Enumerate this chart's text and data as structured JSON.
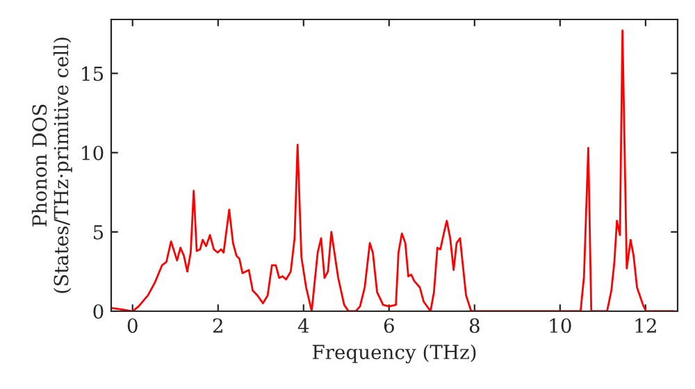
{
  "chart_data": {
    "type": "line",
    "xlabel": "Frequency (THz)",
    "ylabel": "Phonon DOS\n(States/THz·primitive cell)",
    "xlim": [
      -0.5,
      12.75
    ],
    "ylim": [
      0,
      18.4
    ],
    "xticks": [
      0,
      2,
      4,
      6,
      8,
      10,
      12
    ],
    "yticks": [
      0,
      5,
      10,
      15
    ],
    "grid": false,
    "marker": "none",
    "line_style": "solid",
    "series": [
      {
        "color": "#ff0000",
        "x": [
          -0.5,
          -0.24,
          0,
          0.14,
          0.36,
          0.52,
          0.69,
          0.79,
          0.9,
          1.04,
          1.12,
          1.2,
          1.28,
          1.36,
          1.43,
          1.5,
          1.58,
          1.64,
          1.72,
          1.81,
          1.9,
          1.99,
          2.07,
          2.13,
          2.26,
          2.35,
          2.43,
          2.5,
          2.57,
          2.72,
          2.81,
          2.92,
          3.05,
          3.16,
          3.26,
          3.35,
          3.43,
          3.51,
          3.59,
          3.7,
          3.79,
          3.86,
          3.95,
          4.06,
          4.19,
          4.33,
          4.41,
          4.49,
          4.57,
          4.65,
          4.81,
          4.95,
          5.05,
          5.22,
          5.32,
          5.43,
          5.55,
          5.62,
          5.72,
          5.86,
          6.0,
          6.16,
          6.22,
          6.3,
          6.38,
          6.45,
          6.52,
          6.59,
          6.72,
          6.81,
          6.97,
          7.05,
          7.13,
          7.2,
          7.28,
          7.35,
          7.43,
          7.51,
          7.58,
          7.66,
          7.8,
          7.92,
          8.12,
          10.48,
          10.56,
          10.66,
          10.73,
          11.1,
          11.2,
          11.27,
          11.33,
          11.4,
          11.46,
          11.56,
          11.65,
          11.72,
          11.8,
          11.94,
          12.01,
          12.65
        ],
        "values": [
          0.2,
          0.1,
          0,
          0.3,
          1.0,
          1.8,
          2.9,
          3.1,
          4.4,
          3.2,
          4.0,
          3.5,
          2.5,
          3.7,
          7.6,
          3.8,
          3.9,
          4.5,
          4.1,
          4.8,
          3.9,
          3.7,
          3.9,
          3.7,
          6.4,
          4.3,
          3.5,
          3.3,
          2.4,
          2.6,
          1.3,
          1.0,
          0.5,
          1.0,
          2.9,
          2.9,
          2.1,
          2.2,
          2.0,
          2.5,
          4.6,
          10.5,
          3.4,
          1.5,
          0,
          3.7,
          4.6,
          2.1,
          2.5,
          5.0,
          2.1,
          0.4,
          0,
          0,
          0.3,
          1.5,
          4.3,
          3.7,
          1.2,
          0.4,
          0.3,
          0.4,
          3.7,
          4.9,
          4.3,
          2.2,
          2.3,
          1.9,
          1.5,
          0.6,
          0,
          1.2,
          4.0,
          3.9,
          4.9,
          5.7,
          4.6,
          2.6,
          4.3,
          4.6,
          1.0,
          0,
          0,
          0,
          2.2,
          10.3,
          0,
          0,
          1.3,
          3.1,
          5.7,
          4.8,
          17.7,
          2.7,
          4.5,
          3.5,
          1.5,
          0.4,
          0,
          0
        ]
      }
    ]
  }
}
